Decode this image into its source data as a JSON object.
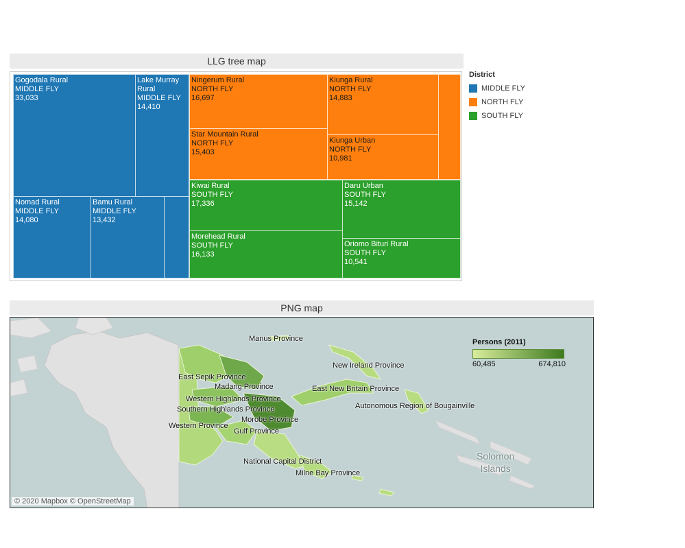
{
  "treemap": {
    "title": "LLG tree map",
    "cells": [
      {
        "name": "Gogodala Rural",
        "district": "MIDDLE FLY",
        "value": "33,033"
      },
      {
        "name": "Lake Murray Rural",
        "district": "MIDDLE FLY",
        "value": "14,410"
      },
      {
        "name": "Nomad Rural",
        "district": "MIDDLE FLY",
        "value": "14,080"
      },
      {
        "name": "Bamu Rural",
        "district": "MIDDLE FLY",
        "value": "13,432"
      },
      {
        "name": "Ningerum Rural",
        "district": "NORTH FLY",
        "value": "16,697"
      },
      {
        "name": "Kiunga Rural",
        "district": "NORTH FLY",
        "value": "14,883"
      },
      {
        "name": "Star Mountain Rural",
        "district": "NORTH FLY",
        "value": "15,403"
      },
      {
        "name": "Kiunga Urban",
        "district": "NORTH FLY",
        "value": "10,981"
      },
      {
        "name": "Kiwai Rural",
        "district": "SOUTH FLY",
        "value": "17,336"
      },
      {
        "name": "Daru Urban",
        "district": "SOUTH FLY",
        "value": "15,142"
      },
      {
        "name": "Morehead Rural",
        "district": "SOUTH FLY",
        "value": "16,133"
      },
      {
        "name": "Oriomo Bituri Rural",
        "district": "SOUTH FLY",
        "value": "10,541"
      }
    ],
    "legend": {
      "title": "District",
      "items": [
        {
          "label": "MIDDLE FLY",
          "color": "#1f77b4"
        },
        {
          "label": "NORTH FLY",
          "color": "#ff7f0e"
        },
        {
          "label": "SOUTH FLY",
          "color": "#2ca02c"
        }
      ]
    }
  },
  "map": {
    "title": "PNG map",
    "legend": {
      "title": "Persons (2011)",
      "min": "60,485",
      "max": "674,810"
    },
    "provinces": [
      "Manus Province",
      "New Ireland Province",
      "East Sepik Province",
      "Madang Province",
      "East New Britain Province",
      "Western Highlands Province",
      "Autonomous Region of Bougainville",
      "Southern Highlands Province",
      "Morobe Province",
      "Western Province",
      "Gulf Province",
      "National Capital District",
      "Milne Bay Province"
    ],
    "solomon_line1": "Solomon",
    "solomon_line2": "Islands",
    "attribution": "© 2020 Mapbox © OpenStreetMap"
  }
}
